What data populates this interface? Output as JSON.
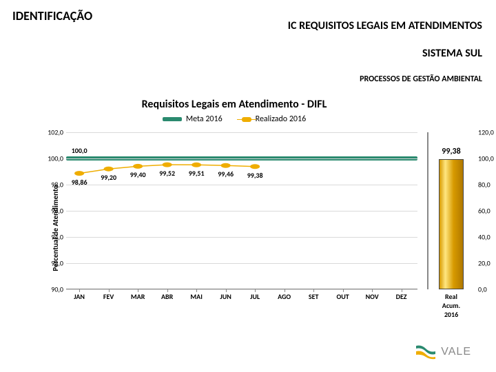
{
  "header": {
    "left_title": "IDENTIFICAÇÃO",
    "right_title_line1": "IC REQUISITOS LEGAIS EM ATENDIMENTOS",
    "right_title_line2": "SISTEMA SUL",
    "subheader": "PROCESSOS DE GESTÃO AMBIENTAL",
    "title_fontsize": 18,
    "right_fontsize": 16
  },
  "chart": {
    "title": "Requisitos Legais em Atendimento - DIFL",
    "title_fontsize": 16,
    "y_axis_title": "Percentual de Atendimento",
    "type": "line+bar",
    "ylim": [
      90,
      102
    ],
    "ytick_step": 2,
    "y_decimals": 1,
    "y_sep": ",",
    "categories": [
      "JAN",
      "FEV",
      "MAR",
      "ABR",
      "MAI",
      "JUN",
      "JUL",
      "AGO",
      "SET",
      "OUT",
      "NOV",
      "DEZ"
    ],
    "meta": {
      "label": "Meta 2016",
      "value": 100.0,
      "value_text": "100,0",
      "color": "#2a8a6f",
      "line_width": 6
    },
    "realizado": {
      "label": "Realizado 2016",
      "color": "#efad00",
      "line_width": 1.5,
      "marker_size": 7,
      "values": [
        98.86,
        99.2,
        99.4,
        99.52,
        99.51,
        99.46,
        99.38
      ],
      "value_texts": [
        "98,86",
        "99,20",
        "99,40",
        "99,52",
        "99,51",
        "99,46",
        "99,38"
      ]
    },
    "grid_color": "#d9d9d9",
    "axis_color": "#888888",
    "label_fontsize": 10,
    "data_label_fontsize": 10,
    "background_color": "#ffffff",
    "secondary": {
      "ylim": [
        0,
        120
      ],
      "ytick_step": 20,
      "y_sep": ",",
      "bar": {
        "category": "Real\nAcum.\n2016",
        "value": 99.38,
        "value_text": "99,38",
        "color_gradient": [
          "#d79a00",
          "#ffe680",
          "#d79a00",
          "#b07800"
        ]
      }
    }
  },
  "logo": {
    "text": "VALE",
    "green": "#2a8a6f",
    "yellow": "#efad00"
  }
}
